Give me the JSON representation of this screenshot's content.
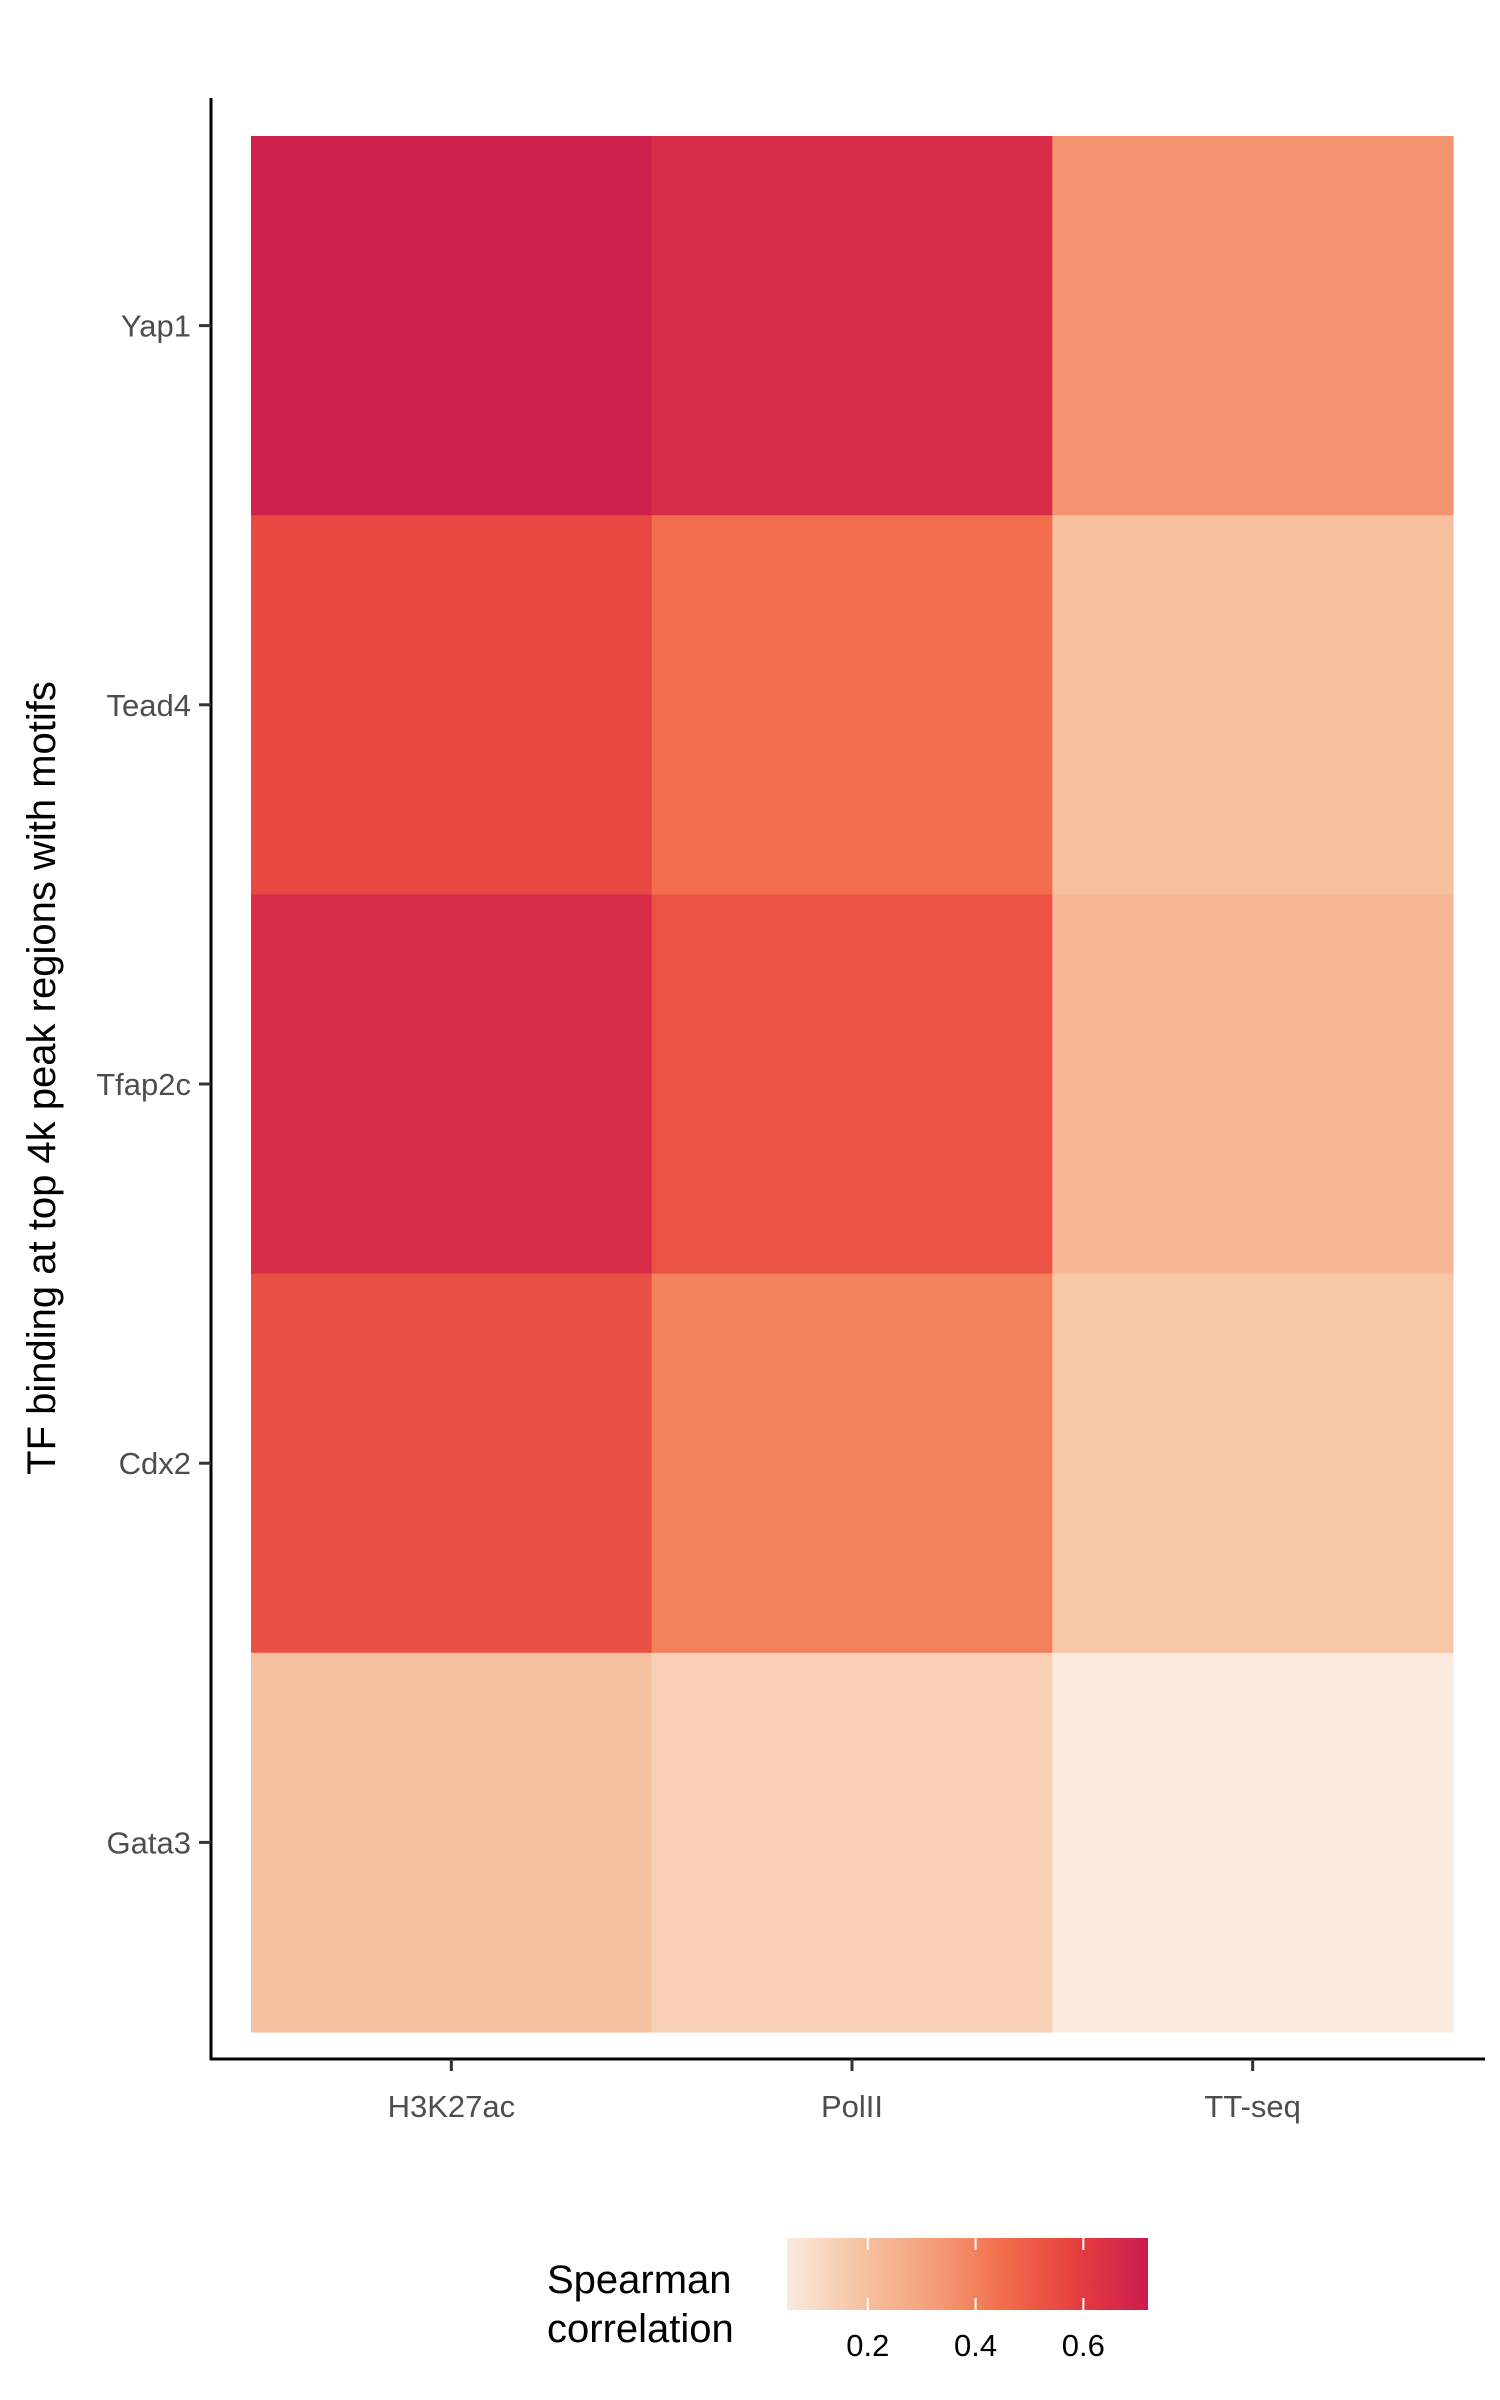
{
  "chart_data": {
    "type": "heatmap",
    "x_categories": [
      "H3K27ac",
      "PolII",
      "TT-seq"
    ],
    "y_categories": [
      "Yap1",
      "Tead4",
      "Tfap2c",
      "Cdx2",
      "Gata3"
    ],
    "values": [
      [
        0.7,
        0.66,
        0.35
      ],
      [
        0.56,
        0.45,
        0.2
      ],
      [
        0.66,
        0.53,
        0.23
      ],
      [
        0.54,
        0.4,
        0.17
      ],
      [
        0.19,
        0.14,
        0.05
      ]
    ],
    "ylabel": "TF binding at top 4k peak regions with motifs",
    "xlabel": "",
    "legend": {
      "title_lines": [
        "Spearman",
        "correlation"
      ],
      "ticks": [
        0.2,
        0.4,
        0.6
      ],
      "range": [
        0.05,
        0.72
      ],
      "position": "bottom"
    },
    "colormap_stops": [
      "#fbebdf",
      "#f6c3a2",
      "#f4a07a",
      "#f26d4c",
      "#e63f3e",
      "#cb1b4f"
    ]
  }
}
